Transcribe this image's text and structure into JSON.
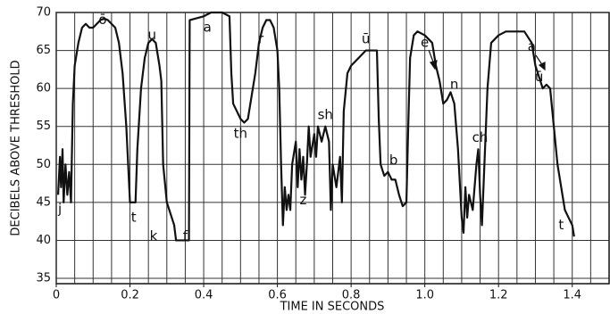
{
  "chart_data": {
    "type": "line",
    "xlabel": "TIME IN SECONDS",
    "ylabel": "DECIBELS ABOVE THRESHOLD",
    "xlim": [
      0,
      1.5
    ],
    "ylim": [
      34.3,
      70
    ],
    "xticks": [
      0,
      0.2,
      0.4,
      0.6,
      0.8,
      {
        "value": 1,
        "label": "1.0"
      },
      1.2,
      1.4
    ],
    "yticks": [
      35,
      40,
      45,
      50,
      55,
      60,
      65,
      70
    ],
    "xgrid": [
      0,
      0.05,
      0.1,
      0.15,
      0.2,
      0.25,
      0.3,
      0.35,
      0.4,
      0.45,
      0.5,
      0.55,
      0.6,
      0.65,
      0.7,
      0.75,
      0.8,
      0.85,
      0.9,
      0.95,
      1,
      1.05,
      1.1,
      1.15,
      1.2,
      1.25,
      1.3,
      1.35,
      1.4,
      1.45
    ],
    "grid": true,
    "color": "#111111",
    "x": [
      0.005,
      0.01,
      0.013,
      0.017,
      0.02,
      0.025,
      0.03,
      0.035,
      0.04,
      0.045,
      0.05,
      0.06,
      0.07,
      0.08,
      0.09,
      0.1,
      0.11,
      0.12,
      0.13,
      0.14,
      0.15,
      0.16,
      0.17,
      0.18,
      0.19,
      0.2,
      0.21,
      0.215,
      0.22,
      0.23,
      0.24,
      0.25,
      0.26,
      0.27,
      0.28,
      0.285,
      0.29,
      0.3,
      0.32,
      0.325,
      0.36,
      0.362,
      0.4,
      0.42,
      0.45,
      0.47,
      0.475,
      0.48,
      0.49,
      0.5,
      0.51,
      0.52,
      0.53,
      0.54,
      0.55,
      0.56,
      0.57,
      0.58,
      0.59,
      0.6,
      0.605,
      0.61,
      0.615,
      0.62,
      0.625,
      0.63,
      0.635,
      0.64,
      0.65,
      0.655,
      0.66,
      0.665,
      0.67,
      0.675,
      0.68,
      0.685,
      0.69,
      0.7,
      0.705,
      0.71,
      0.72,
      0.73,
      0.74,
      0.745,
      0.75,
      0.76,
      0.77,
      0.775,
      0.78,
      0.79,
      0.8,
      0.82,
      0.84,
      0.87,
      0.875,
      0.88,
      0.89,
      0.9,
      0.91,
      0.92,
      0.93,
      0.94,
      0.95,
      0.955,
      0.96,
      0.97,
      0.98,
      1,
      1.02,
      1.03,
      1.04,
      1.05,
      1.06,
      1.07,
      1.08,
      1.09,
      1.1,
      1.105,
      1.11,
      1.115,
      1.12,
      1.13,
      1.14,
      1.145,
      1.15,
      1.155,
      1.16,
      1.17,
      1.18,
      1.2,
      1.22,
      1.25,
      1.27,
      1.29,
      1.3,
      1.32,
      1.33,
      1.34,
      1.35,
      1.36,
      1.37,
      1.38,
      1.39,
      1.4,
      1.405
    ],
    "values": [
      46,
      51,
      47,
      52,
      45,
      50,
      46,
      49,
      45,
      58,
      63,
      66,
      68,
      68.5,
      68,
      68,
      68.5,
      69,
      69.2,
      69,
      68.5,
      68,
      66,
      62,
      55,
      45,
      45,
      45,
      52,
      60,
      64,
      66,
      66.5,
      66,
      63,
      61,
      50,
      45,
      42,
      40,
      40,
      69,
      69.5,
      70,
      70,
      69.5,
      62,
      58,
      57,
      56,
      55.5,
      56,
      59,
      62,
      66,
      68,
      69,
      69,
      68,
      65,
      60,
      50,
      42,
      47,
      44,
      46,
      44,
      50,
      53,
      47,
      52,
      48,
      51,
      46,
      50,
      55,
      51,
      54,
      51,
      55,
      53,
      55,
      53,
      44,
      50,
      47,
      51,
      45,
      57,
      62,
      63,
      64,
      65,
      65,
      56,
      50,
      48.5,
      49,
      48,
      48,
      46,
      44.5,
      45,
      55,
      64,
      67,
      67.5,
      67,
      66,
      63,
      61,
      58,
      58.5,
      59.5,
      58,
      52,
      43,
      41,
      47,
      43,
      46,
      44,
      50,
      52,
      46,
      42,
      48,
      60,
      66,
      67,
      67.5,
      67.5,
      67.5,
      66,
      63,
      60,
      60.5,
      60,
      55,
      50,
      47,
      44,
      43,
      42,
      40.5
    ],
    "annotations": [
      {
        "text": "j",
        "x": 0.01,
        "y": 44.1
      },
      {
        "text": "ō",
        "x": 0.126,
        "y": 69
      },
      {
        "text": "u",
        "x": 0.26,
        "y": 67
      },
      {
        "text": "t",
        "x": 0.21,
        "y": 43
      },
      {
        "text": "k",
        "x": 0.264,
        "y": 40.5
      },
      {
        "text": "f",
        "x": 0.35,
        "y": 40.5
      },
      {
        "text": "a",
        "x": 0.41,
        "y": 68
      },
      {
        "text": "r",
        "x": 0.555,
        "y": 66.5
      },
      {
        "text": "th",
        "x": 0.5,
        "y": 54
      },
      {
        "text": "z",
        "x": 0.67,
        "y": 45.3
      },
      {
        "text": "sh",
        "x": 0.73,
        "y": 56.5
      },
      {
        "text": "ū",
        "x": 0.84,
        "y": 66.5
      },
      {
        "text": "b",
        "x": 0.915,
        "y": 50.5
      },
      {
        "text": "e",
        "x": 1.0,
        "y": 66
      },
      {
        "text": "n",
        "x": 1.08,
        "y": 60.5
      },
      {
        "text": "ch",
        "x": 1.15,
        "y": 53.5
      },
      {
        "text": "a",
        "x": 1.29,
        "y": 65.5
      },
      {
        "text": "ū",
        "x": 1.31,
        "y": 61.5
      },
      {
        "text": "t",
        "x": 1.37,
        "y": 42
      }
    ]
  }
}
